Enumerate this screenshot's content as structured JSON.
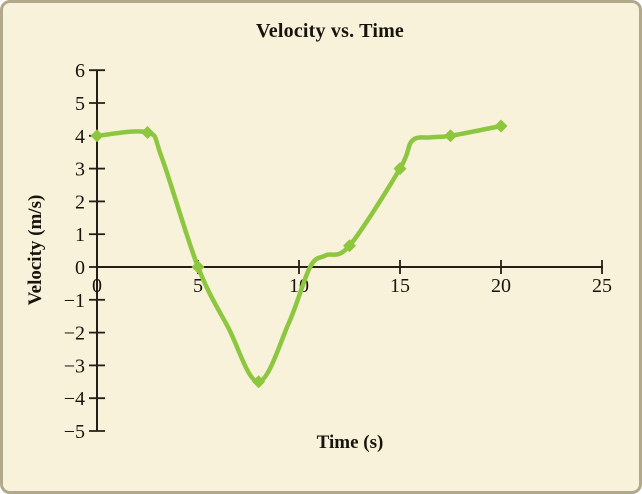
{
  "figure": {
    "title": "Velocity vs. Time",
    "x_axis_label": "Time (s)",
    "y_axis_label": "Velocity (m/s)"
  },
  "chart_data": {
    "type": "line",
    "title": "Velocity vs. Time",
    "xlabel": "Time (s)",
    "ylabel": "Velocity (m/s)",
    "xlim": [
      0,
      25
    ],
    "ylim": [
      -5,
      6
    ],
    "grid": false,
    "legend": false,
    "x_ticks": [
      0,
      5,
      10,
      15,
      20,
      25
    ],
    "x_tick_labels": [
      "0",
      "5",
      "10",
      "15",
      "20",
      "25"
    ],
    "y_ticks": [
      6,
      5,
      4,
      3,
      2,
      1,
      0,
      -1,
      -2,
      -3,
      -4,
      -5
    ],
    "y_tick_labels": [
      "6",
      "5",
      "4",
      "3",
      "2",
      "1",
      "0",
      "−1",
      "−2",
      "−3",
      "−4",
      "−5"
    ],
    "series": [
      {
        "name": "velocity",
        "marker": "diamond",
        "color": "#8dc63f",
        "x": [
          0,
          2.5,
          5,
          8,
          12.5,
          15,
          17.5,
          20
        ],
        "y": [
          4,
          4.1,
          0,
          -3.5,
          0.65,
          3,
          4,
          4.3
        ]
      }
    ],
    "spline_points": [
      [
        0,
        4
      ],
      [
        2.5,
        4.1
      ],
      [
        3.2,
        3.35
      ],
      [
        5,
        0
      ],
      [
        6.5,
        -1.85
      ],
      [
        8,
        -3.5
      ],
      [
        9.5,
        -1.7
      ],
      [
        10.55,
        0
      ],
      [
        11.3,
        0.35
      ],
      [
        12.5,
        0.65
      ],
      [
        15,
        3
      ],
      [
        15.6,
        3.85
      ],
      [
        16.5,
        3.95
      ],
      [
        17.5,
        4
      ],
      [
        20,
        4.3
      ]
    ]
  },
  "colors": {
    "background": "#f7f2d9",
    "border": "#b2a88c",
    "curve": "#8dc63f",
    "axis": "#231f18",
    "text": "#17130d"
  }
}
